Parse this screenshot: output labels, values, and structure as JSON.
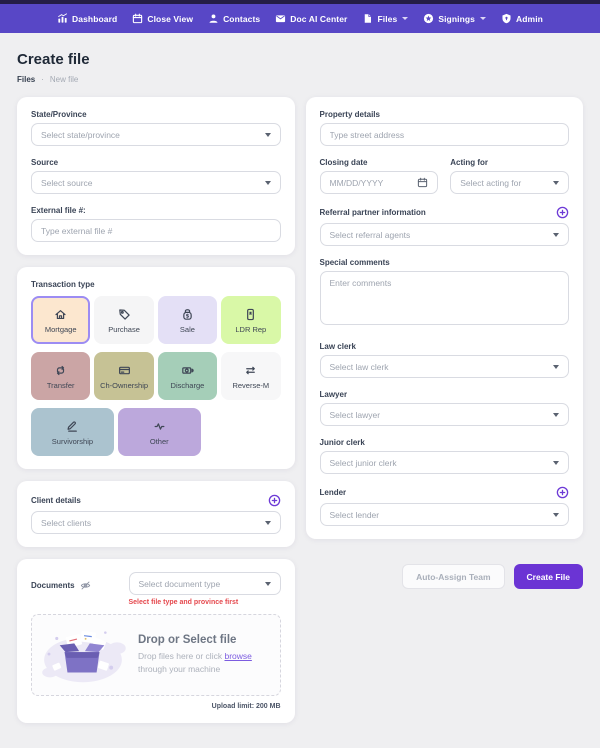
{
  "nav": {
    "items": [
      {
        "label": "Dashboard",
        "icon": "chart"
      },
      {
        "label": "Close View",
        "icon": "calendar"
      },
      {
        "label": "Contacts",
        "icon": "person"
      },
      {
        "label": "Doc AI Center",
        "icon": "inbox"
      },
      {
        "label": "Files",
        "icon": "file",
        "caret": true
      },
      {
        "label": "Signings",
        "icon": "star",
        "caret": true
      },
      {
        "label": "Admin",
        "icon": "shield"
      }
    ]
  },
  "header": {
    "title": "Create file",
    "breadcrumb_root": "Files",
    "breadcrumb_sep": "·",
    "breadcrumb_current": "New file"
  },
  "left": {
    "basics": {
      "state_label": "State/Province",
      "state_placeholder": "Select state/province",
      "source_label": "Source",
      "source_placeholder": "Select source",
      "external_label": "External file #:",
      "external_placeholder": "Type external file #"
    },
    "transaction": {
      "label": "Transaction type",
      "tiles": [
        {
          "name": "Mortgage",
          "icon": "home",
          "bg": "#FCE7CF",
          "selected": true
        },
        {
          "name": "Purchase",
          "icon": "tag",
          "bg": "#F5F5F6",
          "selected": false
        },
        {
          "name": "Sale",
          "icon": "money-bag",
          "bg": "#E4E0F6",
          "selected": false
        },
        {
          "name": "LDR Rep",
          "icon": "phone",
          "bg": "#D9F8A7",
          "selected": false
        },
        {
          "name": "Transfer",
          "icon": "repeat",
          "bg": "#CBA5A5",
          "selected": false
        },
        {
          "name": "Ch-Ownership",
          "icon": "credit-card",
          "bg": "#C6C295",
          "selected": false
        },
        {
          "name": "Discharge",
          "icon": "cash-out",
          "bg": "#A5CEB8",
          "selected": false
        },
        {
          "name": "Reverse-M",
          "icon": "swap",
          "bg": "#F7F7F8",
          "selected": false
        },
        {
          "name": "Survivorship",
          "icon": "pen",
          "bg": "#ABC3CF",
          "selected": false,
          "wide": true
        },
        {
          "name": "Other",
          "icon": "pulse",
          "bg": "#BCA8DC",
          "selected": false,
          "wide": true
        }
      ]
    },
    "clients": {
      "label": "Client details",
      "placeholder": "Select clients"
    },
    "documents": {
      "label": "Documents",
      "doc_type_placeholder": "Select document type",
      "warning": "Select file type and province first",
      "drop_title": "Drop or Select file",
      "drop_text_1": "Drop files here or click",
      "drop_link": "browse",
      "drop_text_2": "through your machine",
      "upload_limit": "Upload limit: 200 MB"
    }
  },
  "right": {
    "property_label": "Property details",
    "property_placeholder": "Type street address",
    "closing_label": "Closing date",
    "closing_placeholder": "MM/DD/YYYY",
    "acting_label": "Acting for",
    "acting_placeholder": "Select acting for",
    "referral_label": "Referral partner information",
    "referral_placeholder": "Select referral agents",
    "comments_label": "Special comments",
    "comments_placeholder": "Enter comments",
    "law_clerk_label": "Law clerk",
    "law_clerk_placeholder": "Select law clerk",
    "lawyer_label": "Lawyer",
    "lawyer_placeholder": "Select lawyer",
    "junior_label": "Junior clerk",
    "junior_placeholder": "Select junior clerk",
    "lender_label": "Lender",
    "lender_placeholder": "Select lender"
  },
  "actions": {
    "auto_assign": "Auto-Assign Team",
    "create": "Create File"
  },
  "colors": {
    "nav_bg": "#5847C6",
    "top_strip": "#251D46",
    "accent_purple": "#6D3AD6",
    "selected_tile_border": "#9C8CF3",
    "warning_red": "#E5484D",
    "create_button": "#6B34D4",
    "page_bg": "#EFEFF1"
  }
}
